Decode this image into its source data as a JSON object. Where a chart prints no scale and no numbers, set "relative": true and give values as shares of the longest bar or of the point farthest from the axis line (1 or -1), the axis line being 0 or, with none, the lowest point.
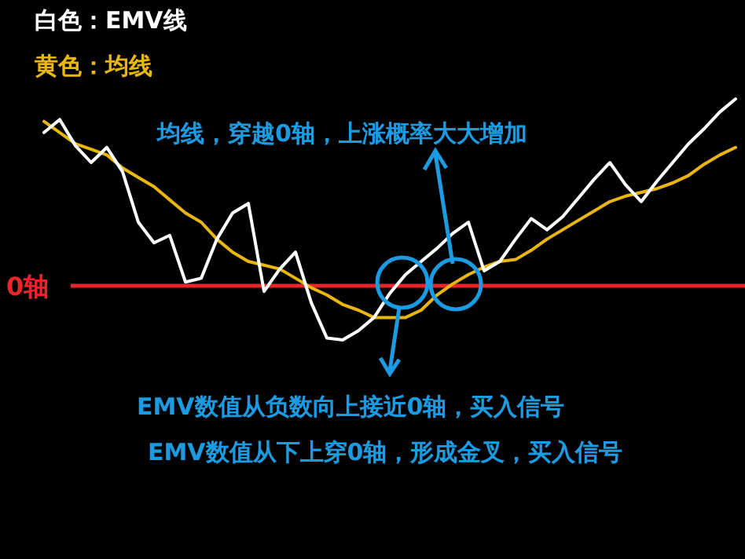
{
  "chart_data": {
    "type": "line",
    "relative": true,
    "legend": "top left",
    "categories": [
      null,
      null,
      null,
      null,
      null,
      null,
      null,
      null,
      null,
      null,
      null,
      null,
      null,
      null,
      null,
      null,
      null,
      null,
      null,
      null,
      null,
      null,
      null,
      null,
      null,
      null,
      null,
      null,
      null,
      null,
      null,
      null,
      null,
      null,
      null,
      null,
      null,
      null,
      null,
      null,
      null,
      null,
      null,
      null,
      null
    ],
    "series": [
      {
        "name": "白色：EMV线",
        "color": "#ffffff",
        "values": [
          0.82,
          0.89,
          0.75,
          0.66,
          0.74,
          0.61,
          0.34,
          0.23,
          0.27,
          0.02,
          0.04,
          0.25,
          0.39,
          0.44,
          -0.03,
          0.09,
          0.18,
          -0.09,
          -0.28,
          -0.29,
          -0.24,
          -0.17,
          -0.04,
          0.06,
          0.13,
          0.2,
          0.28,
          0.34,
          0.08,
          0.13,
          0.25,
          0.36,
          0.3,
          0.37,
          0.47,
          0.57,
          0.66,
          0.54,
          0.45,
          0.56,
          0.66,
          0.76,
          0.84,
          0.93,
          1
        ]
      },
      {
        "name": "黄色：均线",
        "color": "#e8b511",
        "values": [
          0.88,
          0.82,
          0.76,
          0.73,
          0.7,
          0.63,
          0.58,
          0.53,
          0.46,
          0.39,
          0.34,
          0.25,
          0.18,
          0.13,
          0.11,
          0.09,
          0.04,
          -0.01,
          -0.05,
          -0.1,
          -0.13,
          -0.17,
          -0.17,
          -0.17,
          -0.13,
          -0.05,
          0.01,
          0.06,
          0.1,
          0.13,
          0.14,
          0.19,
          0.25,
          0.3,
          0.35,
          0.4,
          0.45,
          0.48,
          0.5,
          0.52,
          0.55,
          0.59,
          0.65,
          0.7,
          0.74
        ]
      }
    ],
    "ref_lines": [
      {
        "axis": "y",
        "value": 0,
        "label": "0轴",
        "color": "#e8262a"
      }
    ],
    "annotations": [
      "均线，穿越0轴，上涨概率大大增加",
      "EMV数值从负数向上接近0轴，买入信号",
      "EMV数值从下上穿0轴，形成金叉，买入信号"
    ]
  }
}
